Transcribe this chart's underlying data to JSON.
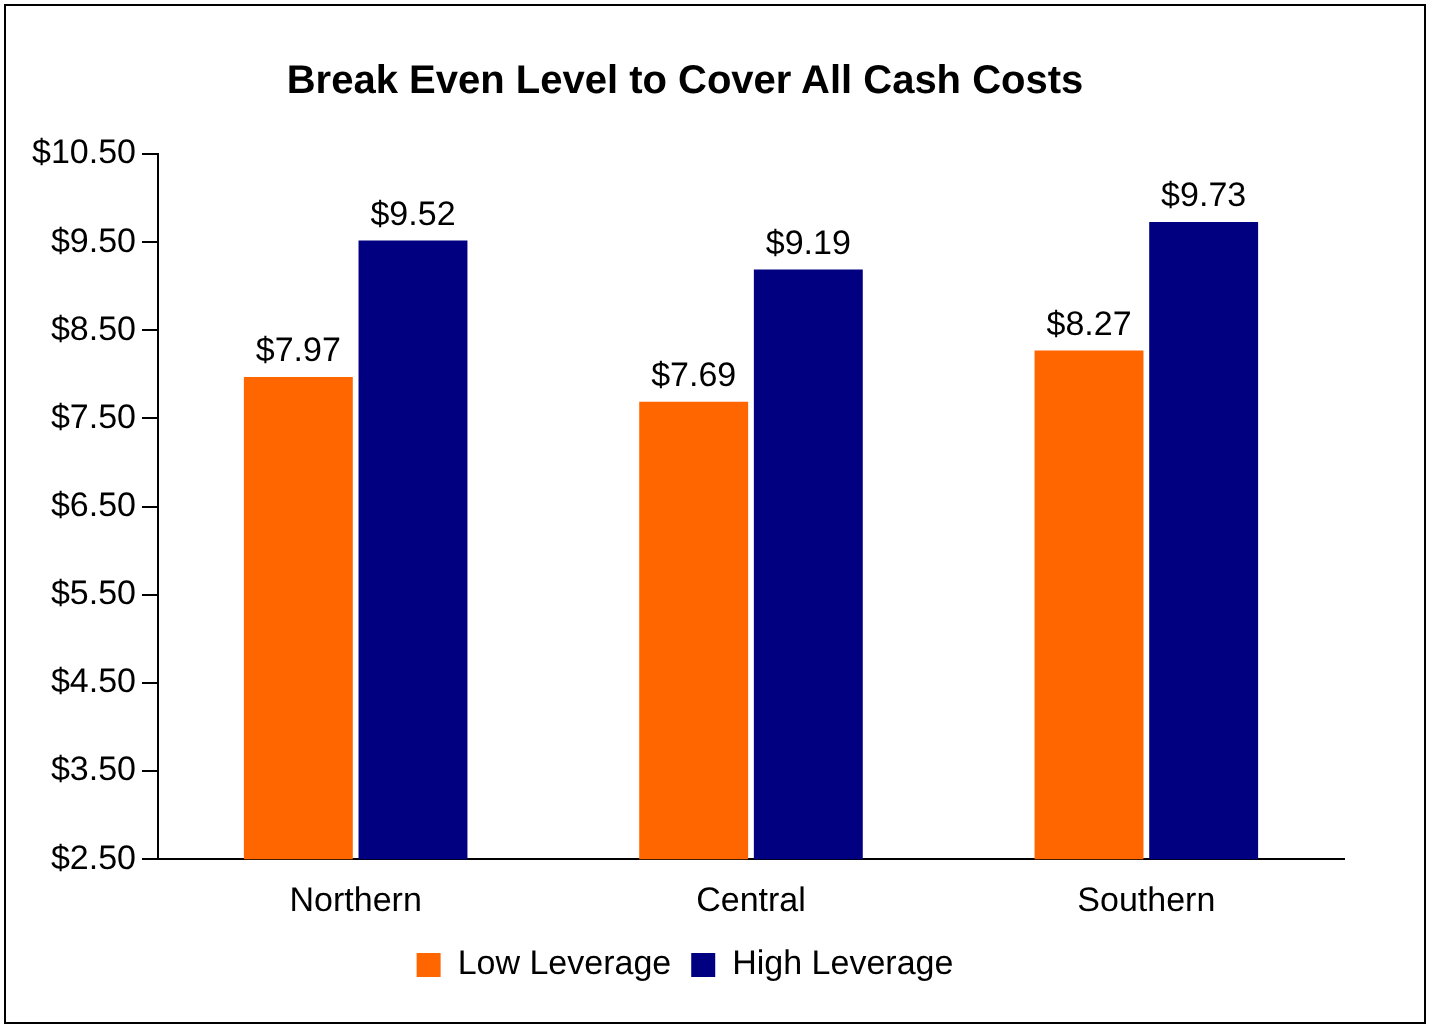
{
  "chart_data": {
    "type": "bar",
    "title": "Break Even Level to Cover All Cash Costs",
    "categories": [
      "Northern",
      "Central",
      "Southern"
    ],
    "series": [
      {
        "name": "Low Leverage",
        "color": "#ff6600",
        "values": [
          7.97,
          7.69,
          8.27
        ],
        "value_labels": [
          "$7.97",
          "$7.69",
          "$8.27"
        ]
      },
      {
        "name": "High Leverage",
        "color": "#000080",
        "values": [
          9.52,
          9.19,
          9.73
        ],
        "value_labels": [
          "$9.52",
          "$9.19",
          "$9.73"
        ]
      }
    ],
    "ylim": [
      2.5,
      10.5
    ],
    "yticks": [
      {
        "value": 2.5,
        "label": "$2.50"
      },
      {
        "value": 3.5,
        "label": "$3.50"
      },
      {
        "value": 4.5,
        "label": "$4.50"
      },
      {
        "value": 5.5,
        "label": "$5.50"
      },
      {
        "value": 6.5,
        "label": "$6.50"
      },
      {
        "value": 7.5,
        "label": "$7.50"
      },
      {
        "value": 8.5,
        "label": "$8.50"
      },
      {
        "value": 9.5,
        "label": "$9.50"
      },
      {
        "value": 10.5,
        "label": "$10.50"
      }
    ],
    "grid": false,
    "legend": "bottom"
  }
}
